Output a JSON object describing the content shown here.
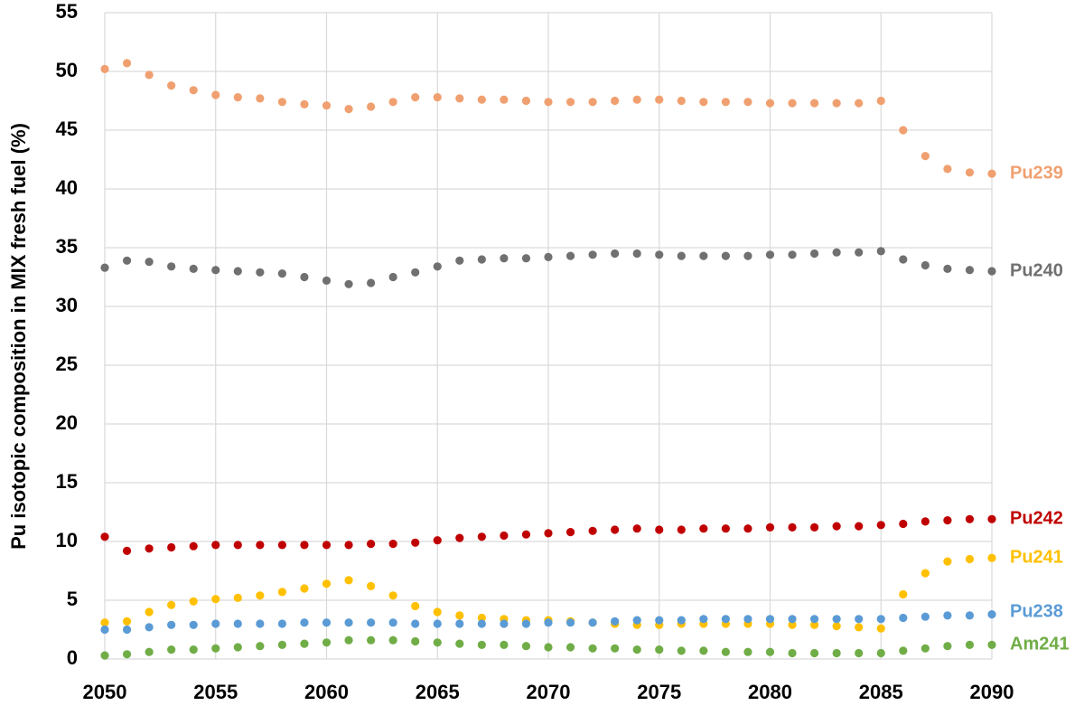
{
  "chart_data": {
    "type": "scatter",
    "y_label": "Pu isotopic composition in MIX fresh fuel (%)",
    "x": [
      2050,
      2051,
      2052,
      2053,
      2054,
      2055,
      2056,
      2057,
      2058,
      2059,
      2060,
      2061,
      2062,
      2063,
      2064,
      2065,
      2066,
      2067,
      2068,
      2069,
      2070,
      2071,
      2072,
      2073,
      2074,
      2075,
      2076,
      2077,
      2078,
      2079,
      2080,
      2081,
      2082,
      2083,
      2084,
      2085,
      2086,
      2087,
      2088,
      2089,
      2090
    ],
    "xlim": [
      2050,
      2090
    ],
    "xticks": [
      2050,
      2055,
      2060,
      2065,
      2070,
      2075,
      2080,
      2085,
      2090
    ],
    "ylim": [
      0,
      55
    ],
    "yticks": [
      0,
      5,
      10,
      15,
      20,
      25,
      30,
      35,
      40,
      45,
      50,
      55
    ],
    "grid": true,
    "series": [
      {
        "name": "Pu239",
        "color": "#f0a070",
        "values": [
          50.2,
          50.7,
          49.7,
          48.8,
          48.4,
          48.0,
          47.8,
          47.7,
          47.4,
          47.2,
          47.1,
          46.8,
          47.0,
          47.4,
          47.8,
          47.8,
          47.7,
          47.6,
          47.6,
          47.5,
          47.4,
          47.4,
          47.4,
          47.5,
          47.6,
          47.6,
          47.5,
          47.4,
          47.4,
          47.4,
          47.3,
          47.3,
          47.3,
          47.3,
          47.3,
          47.5,
          45.0,
          42.8,
          41.7,
          41.4,
          41.3
        ]
      },
      {
        "name": "Pu240",
        "color": "#707070",
        "values": [
          33.3,
          33.9,
          33.8,
          33.4,
          33.2,
          33.1,
          33.0,
          32.9,
          32.8,
          32.5,
          32.2,
          31.9,
          32.0,
          32.5,
          32.9,
          33.4,
          33.9,
          34.0,
          34.1,
          34.1,
          34.2,
          34.3,
          34.4,
          34.5,
          34.5,
          34.4,
          34.3,
          34.3,
          34.3,
          34.3,
          34.4,
          34.4,
          34.5,
          34.6,
          34.6,
          34.7,
          34.0,
          33.5,
          33.2,
          33.1,
          33.0
        ]
      },
      {
        "name": "Pu242",
        "color": "#c00000",
        "values": [
          10.4,
          9.2,
          9.4,
          9.5,
          9.6,
          9.7,
          9.7,
          9.7,
          9.7,
          9.7,
          9.7,
          9.7,
          9.8,
          9.8,
          9.9,
          10.1,
          10.3,
          10.4,
          10.5,
          10.6,
          10.7,
          10.8,
          10.9,
          11.0,
          11.1,
          11.0,
          11.0,
          11.1,
          11.1,
          11.1,
          11.2,
          11.2,
          11.2,
          11.3,
          11.3,
          11.4,
          11.5,
          11.7,
          11.8,
          11.9,
          11.9
        ]
      },
      {
        "name": "Pu241",
        "color": "#ffc000",
        "values": [
          3.1,
          3.2,
          4.0,
          4.6,
          4.9,
          5.1,
          5.2,
          5.4,
          5.7,
          6.0,
          6.4,
          6.7,
          6.2,
          5.4,
          4.5,
          4.0,
          3.7,
          3.5,
          3.4,
          3.3,
          3.3,
          3.2,
          3.1,
          3.0,
          2.9,
          2.9,
          3.0,
          3.0,
          3.0,
          3.0,
          3.0,
          2.9,
          2.9,
          2.8,
          2.7,
          2.6,
          5.5,
          7.3,
          8.3,
          8.5,
          8.6
        ]
      },
      {
        "name": "Pu238",
        "color": "#5b9bd5",
        "values": [
          2.5,
          2.5,
          2.7,
          2.9,
          2.9,
          3.0,
          3.0,
          3.0,
          3.0,
          3.1,
          3.1,
          3.1,
          3.1,
          3.1,
          3.0,
          3.0,
          3.0,
          3.0,
          3.0,
          3.0,
          3.1,
          3.1,
          3.1,
          3.2,
          3.3,
          3.3,
          3.3,
          3.4,
          3.4,
          3.4,
          3.4,
          3.4,
          3.4,
          3.4,
          3.4,
          3.4,
          3.5,
          3.6,
          3.7,
          3.7,
          3.8
        ]
      },
      {
        "name": "Am241",
        "color": "#70ad47",
        "values": [
          0.3,
          0.4,
          0.6,
          0.8,
          0.8,
          0.9,
          1.0,
          1.1,
          1.2,
          1.3,
          1.4,
          1.6,
          1.6,
          1.6,
          1.5,
          1.4,
          1.3,
          1.2,
          1.2,
          1.1,
          1.0,
          1.0,
          0.9,
          0.9,
          0.8,
          0.8,
          0.7,
          0.7,
          0.6,
          0.6,
          0.6,
          0.5,
          0.5,
          0.5,
          0.5,
          0.5,
          0.7,
          0.9,
          1.1,
          1.2,
          1.2
        ]
      }
    ]
  }
}
